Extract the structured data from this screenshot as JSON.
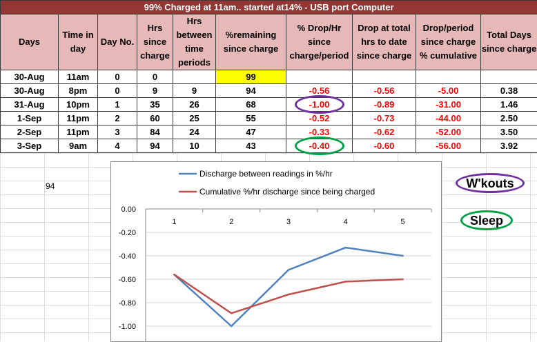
{
  "table": {
    "title": "99% Charged at 11am.. started at14% - USB port Computer",
    "headers": [
      "Days",
      "Time in day",
      "Day No.",
      "Hrs since charge",
      "Hrs between time periods",
      "%remaining since charge",
      "% Drop/Hr since charge/period",
      "Drop at total hrs to date since charge",
      "Drop/period since charge % cumulative",
      "Total Days since charge"
    ],
    "rows": [
      [
        "30-Aug",
        "11am",
        "0",
        "0",
        "",
        "99",
        "",
        "",
        "",
        ""
      ],
      [
        "30-Aug",
        "8pm",
        "0",
        "9",
        "9",
        "94",
        "-0.56",
        "-0.56",
        "-5.00",
        "0.38"
      ],
      [
        "31-Aug",
        "10pm",
        "1",
        "35",
        "26",
        "68",
        "-1.00",
        "-0.89",
        "-31.00",
        "1.46"
      ],
      [
        "1-Sep",
        "11pm",
        "2",
        "60",
        "25",
        "55",
        "-0.52",
        "-0.73",
        "-44.00",
        "2.50"
      ],
      [
        "2-Sep",
        "11pm",
        "3",
        "84",
        "24",
        "47",
        "-0.33",
        "-0.62",
        "-52.00",
        "3.50"
      ],
      [
        "3-Sep",
        "9am",
        "4",
        "94",
        "10",
        "43",
        "-0.40",
        "-0.60",
        "-56.00",
        "3.92"
      ]
    ]
  },
  "loose_cell": "94",
  "labels": {
    "workouts": "W'kouts",
    "sleep": "Sleep"
  },
  "colors": {
    "title_bg": "#943634",
    "header_bg": "#e6b9b8",
    "highlight": "#ffff00",
    "negative_text": "#ff0000",
    "series1": "#4f81bd",
    "series2": "#c0504d",
    "workouts_oval": "#7030a0",
    "sleep_oval": "#00a046"
  },
  "chart_data": {
    "type": "line",
    "categories": [
      "1",
      "2",
      "3",
      "4",
      "5"
    ],
    "series": [
      {
        "name": "Discharge between readings in %/hr",
        "values": [
          -0.56,
          -1.0,
          -0.52,
          -0.33,
          -0.4
        ]
      },
      {
        "name": "Cumulative %/hr discharge since being charged",
        "values": [
          -0.56,
          -0.89,
          -0.73,
          -0.62,
          -0.6
        ]
      }
    ],
    "y_ticks": [
      "0.00",
      "-0.20",
      "-0.40",
      "-0.60",
      "-0.80",
      "-1.00"
    ],
    "ylim": [
      -1.2,
      0
    ],
    "legend_position": "top",
    "x_axis_position": "top",
    "grid": true
  }
}
